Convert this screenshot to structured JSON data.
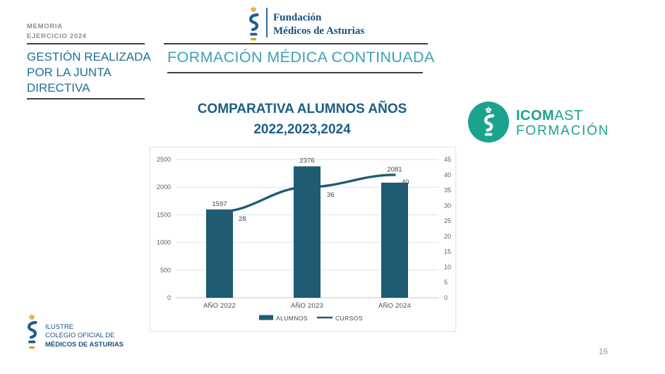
{
  "slide": {
    "eyebrow": {
      "line1": "MEMORIA",
      "line2": "EJERCICIO 2024"
    },
    "left_title": "GESTIÓN REALIZADA POR LA JUNTA DIRECTIVA",
    "section_title": "FORMACIÓN MÉDICA CONTINUADA",
    "heading": {
      "line1": "COMPARATIVA ALUMNOS AÑOS",
      "line2": "2022,2023,2024"
    },
    "page_number": "16"
  },
  "foundation_logo": {
    "line1": "Fundación",
    "line2": "Médicos de Asturias"
  },
  "icomast_logo": {
    "word_bold": "ICOM",
    "word_rest": "AST",
    "line2": "FORMACIÓN",
    "color": "#1ba38e"
  },
  "footer_logo": {
    "line1": "ILUSTRE",
    "line2": "COLEGIO OFICIAL DE",
    "line3": "MÉDICOS DE ASTURIAS"
  },
  "icons": {
    "crown_glyph": "♚"
  },
  "colors": {
    "accent_teal": "#3ba2b4",
    "accent_blue": "#1f6f96",
    "title_navy": "#1d5e87",
    "brand_navy": "#174f7c",
    "gold": "#d9a226",
    "rule_gray": "#3c4043"
  },
  "chart_data": {
    "type": "bar",
    "subtype": "combo-bar-line",
    "title": "COMPARATIVA ALUMNOS AÑOS 2022,2023,2024",
    "categories": [
      "AÑO 2022",
      "AÑO 2023",
      "AÑO 2024"
    ],
    "series": [
      {
        "name": "ALUMNOS",
        "type": "bar",
        "axis": "left",
        "values": [
          1597,
          2376,
          2081
        ]
      },
      {
        "name": "CURSOS",
        "type": "line",
        "axis": "right",
        "values": [
          28,
          36,
          40
        ]
      }
    ],
    "left_axis": {
      "min": 0,
      "max": 2500,
      "step": 500,
      "ticks": [
        0,
        500,
        1000,
        1500,
        2000,
        2500
      ]
    },
    "right_axis": {
      "min": 0,
      "max": 45,
      "step": 5,
      "ticks": [
        0,
        5,
        10,
        15,
        20,
        25,
        30,
        35,
        40,
        45
      ]
    },
    "grid": true,
    "data_labels": true,
    "legend_position": "bottom",
    "xlabel": "",
    "ylabel": "",
    "colors": {
      "bar": "#1f5b73",
      "line": "#1f5b73",
      "grid": "#e0e2e6",
      "axis_line": "#c4c7cc"
    }
  }
}
